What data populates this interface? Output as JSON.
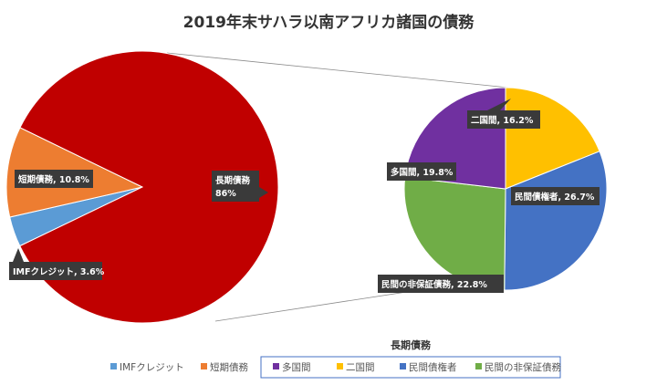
{
  "chart_data": {
    "type": "pie",
    "title": "2019年末サハラ以南アフリカ諸国の債務",
    "main_pie": {
      "slices": [
        {
          "name": "IMFクレジット",
          "label": "IMFクレジット, 3.6%",
          "value": 3.6,
          "color": "#5B9BD5"
        },
        {
          "name": "短期債務",
          "label": "短期債務, 10.8%",
          "value": 10.8,
          "color": "#ED7D31"
        },
        {
          "name": "長期債務",
          "label": "長期債務 86%",
          "label_line1": "長期債務",
          "label_line2": "86%",
          "value": 86,
          "color": "#C00000"
        }
      ]
    },
    "breakdown_pie": {
      "of": "長期債務",
      "slices": [
        {
          "name": "二国間",
          "label": "二国間, 16.2%",
          "value": 16.2,
          "color": "#FFC000"
        },
        {
          "name": "民間債権者",
          "label": "民間債権者, 26.7%",
          "value": 26.7,
          "color": "#4472C4"
        },
        {
          "name": "民間の非保証債務",
          "label": "民間の非保証債務, 22.8%",
          "value": 22.8,
          "color": "#70AD47"
        },
        {
          "name": "多国間",
          "label": "多国間, 19.8%",
          "value": 19.8,
          "color": "#7030A0"
        }
      ]
    },
    "legend": {
      "group_title": "長期債務",
      "placement": "bottom",
      "items": [
        {
          "label": "IMFクレジット",
          "color": "#5B9BD5"
        },
        {
          "label": "短期債務",
          "color": "#ED7D31"
        },
        {
          "label": "多国間",
          "color": "#7030A0"
        },
        {
          "label": "二国間",
          "color": "#FFC000"
        },
        {
          "label": "民間債権者",
          "color": "#4472C4"
        },
        {
          "label": "民間の非保証債務",
          "color": "#70AD47"
        }
      ]
    }
  }
}
